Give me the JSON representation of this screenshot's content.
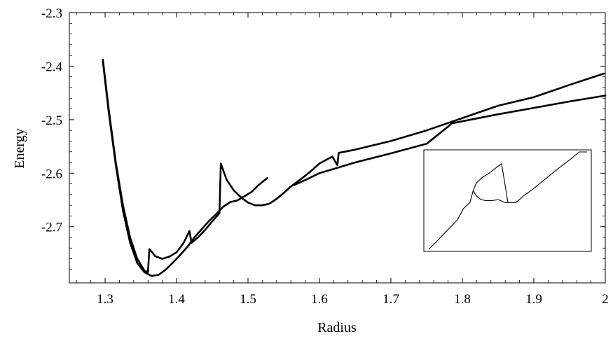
{
  "chart_data": {
    "type": "line",
    "title": "",
    "xlabel": "Radius",
    "ylabel": "Energy",
    "xlim": [
      1.25,
      2.0
    ],
    "ylim": [
      -2.805,
      -2.3
    ],
    "grid": false,
    "x_ticks": [
      1.3,
      1.4,
      1.5,
      1.6,
      1.7,
      1.8,
      1.9,
      2.0
    ],
    "x_tick_labels": [
      "1.3",
      "1.4",
      "1.5",
      "1.6",
      "1.7",
      "1.8",
      "1.9",
      "2"
    ],
    "y_ticks": [
      -2.3,
      -2.4,
      -2.5,
      -2.6,
      -2.7
    ],
    "y_tick_labels": [
      "-2.3",
      "-2.4",
      "-2.5",
      "-2.6",
      "-2.7"
    ],
    "series": [
      {
        "x": [
          1.297,
          1.305,
          1.315,
          1.325,
          1.335,
          1.345,
          1.355,
          1.36,
          1.362,
          1.366,
          1.37,
          1.38,
          1.39,
          1.4,
          1.41,
          1.418,
          1.421,
          1.43,
          1.44,
          1.45,
          1.46,
          1.462,
          1.47,
          1.48,
          1.49,
          1.5,
          1.51,
          1.52,
          1.53,
          1.54,
          1.55,
          1.56,
          1.57,
          1.58,
          1.59,
          1.6,
          1.618,
          1.625,
          1.627,
          1.65,
          1.7,
          1.75,
          1.8,
          1.85,
          1.9,
          1.95,
          1.998
        ],
        "y": [
          -2.388,
          -2.48,
          -2.58,
          -2.66,
          -2.72,
          -2.76,
          -2.782,
          -2.785,
          -2.742,
          -2.748,
          -2.755,
          -2.76,
          -2.756,
          -2.748,
          -2.73,
          -2.708,
          -2.73,
          -2.72,
          -2.706,
          -2.69,
          -2.675,
          -2.582,
          -2.612,
          -2.632,
          -2.645,
          -2.655,
          -2.66,
          -2.66,
          -2.657,
          -2.648,
          -2.637,
          -2.625,
          -2.615,
          -2.605,
          -2.594,
          -2.582,
          -2.569,
          -2.585,
          -2.562,
          -2.556,
          -2.54,
          -2.52,
          -2.497,
          -2.474,
          -2.458,
          -2.435,
          -2.414
        ]
      },
      {
        "x": [
          1.297,
          1.305,
          1.315,
          1.325,
          1.335,
          1.345,
          1.355,
          1.365,
          1.375,
          1.385,
          1.395,
          1.405,
          1.415,
          1.425,
          1.435,
          1.445,
          1.455,
          1.465,
          1.475,
          1.485,
          1.495,
          1.505,
          1.515,
          1.527
        ],
        "y": [
          -2.392,
          -2.485,
          -2.585,
          -2.67,
          -2.73,
          -2.768,
          -2.785,
          -2.792,
          -2.79,
          -2.78,
          -2.767,
          -2.753,
          -2.738,
          -2.72,
          -2.705,
          -2.69,
          -2.677,
          -2.663,
          -2.654,
          -2.651,
          -2.643,
          -2.635,
          -2.622,
          -2.609
        ]
      },
      {
        "x": [
          1.565,
          1.58,
          1.6,
          1.62,
          1.65,
          1.7,
          1.75,
          1.78,
          1.785,
          1.8,
          1.85,
          1.9,
          1.95,
          2.0
        ],
        "y": [
          -2.622,
          -2.613,
          -2.6,
          -2.592,
          -2.58,
          -2.563,
          -2.545,
          -2.513,
          -2.507,
          -2.503,
          -2.49,
          -2.478,
          -2.466,
          -2.455
        ]
      }
    ],
    "inset": {
      "x": [
        0.0,
        0.05,
        0.12,
        0.18,
        0.22,
        0.26,
        0.28,
        0.3,
        0.34,
        0.38,
        0.42,
        0.46,
        0.5,
        0.55,
        0.6,
        0.66,
        0.72,
        0.78,
        0.85,
        0.9,
        0.92,
        0.95,
        1.0
      ],
      "y": [
        0.0,
        0.08,
        0.2,
        0.3,
        0.42,
        0.48,
        0.6,
        0.68,
        0.74,
        0.78,
        0.83,
        0.88,
        0.48,
        0.48,
        0.55,
        0.62,
        0.7,
        0.78,
        0.87,
        0.93,
        0.96,
        1.0,
        1.0
      ],
      "x2": [
        0.28,
        0.3,
        0.33,
        0.36,
        0.4,
        0.44,
        0.48,
        0.5
      ],
      "y2": [
        0.6,
        0.55,
        0.51,
        0.5,
        0.5,
        0.51,
        0.48,
        0.48
      ]
    }
  }
}
